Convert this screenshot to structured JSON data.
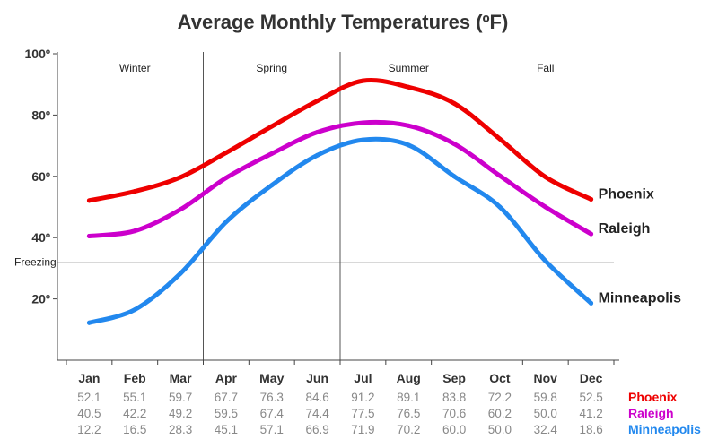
{
  "chart_data": {
    "type": "line",
    "title": "Average Monthly Temperatures (ºF)",
    "categories": [
      "Jan",
      "Feb",
      "Mar",
      "Apr",
      "May",
      "Jun",
      "Jul",
      "Aug",
      "Sep",
      "Oct",
      "Nov",
      "Dec"
    ],
    "ylim": [
      0,
      100
    ],
    "yticks": [
      {
        "value": 20,
        "label": "20º"
      },
      {
        "value": 40,
        "label": "40º"
      },
      {
        "value": 60,
        "label": "60º"
      },
      {
        "value": 80,
        "label": "80º"
      },
      {
        "value": 100,
        "label": "100º"
      }
    ],
    "reference_line": {
      "value": 32,
      "label": "Freezing"
    },
    "seasons": [
      {
        "label": "Winter",
        "from": 0,
        "to": 2
      },
      {
        "label": "Spring",
        "from": 3,
        "to": 5
      },
      {
        "label": "Summer",
        "from": 6,
        "to": 8
      },
      {
        "label": "Fall",
        "from": 9,
        "to": 11
      }
    ],
    "series": [
      {
        "name": "Phoenix",
        "color": "#ee0000",
        "values": [
          52.1,
          55.1,
          59.7,
          67.7,
          76.3,
          84.6,
          91.2,
          89.1,
          83.8,
          72.2,
          59.8,
          52.5
        ],
        "labels": [
          "52.1",
          "55.1",
          "59.7",
          "67.7",
          "76.3",
          "84.6",
          "91.2",
          "89.1",
          "83.8",
          "72.2",
          "59.8",
          "52.5"
        ]
      },
      {
        "name": "Raleigh",
        "color": "#cc00cc",
        "values": [
          40.5,
          42.2,
          49.2,
          59.5,
          67.4,
          74.4,
          77.5,
          76.5,
          70.6,
          60.2,
          50.0,
          41.2
        ],
        "labels": [
          "40.5",
          "42.2",
          "49.2",
          "59.5",
          "67.4",
          "74.4",
          "77.5",
          "76.5",
          "70.6",
          "60.2",
          "50.0",
          "41.2"
        ]
      },
      {
        "name": "Minneapolis",
        "color": "#2288ee",
        "values": [
          12.2,
          16.5,
          28.3,
          45.1,
          57.1,
          66.9,
          71.9,
          70.2,
          60.0,
          50.0,
          32.4,
          18.6
        ],
        "labels": [
          "12.2",
          "16.5",
          "28.3",
          "45.1",
          "57.1",
          "66.9",
          "71.9",
          "70.2",
          "60.0",
          "50.0",
          "32.4",
          "18.6"
        ]
      }
    ],
    "grid": false,
    "legend": "line-end labels and data table below"
  }
}
